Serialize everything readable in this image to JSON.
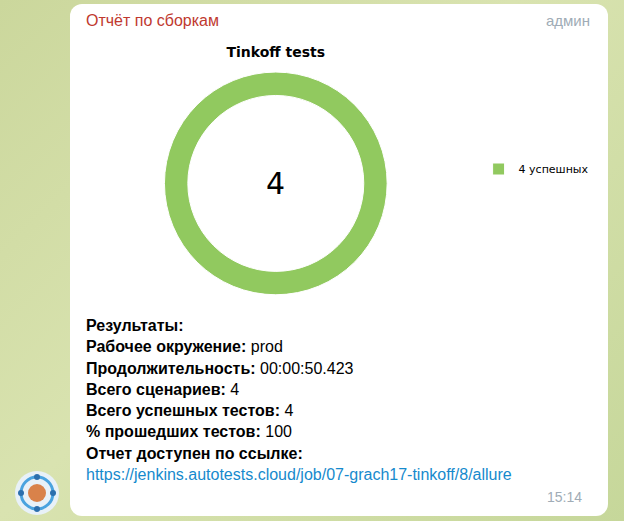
{
  "message": {
    "sender": "Отчёт по сборкам",
    "author": "админ",
    "time": "15:14",
    "heading": "Результаты:",
    "fields": [
      {
        "label": "Рабочее окружение:",
        "value": "prod"
      },
      {
        "label": "Продолжительность:",
        "value": "00:00:50.423"
      },
      {
        "label": "Всего сценариев:",
        "value": 4
      },
      {
        "label": "Всего успешных тестов:",
        "value": 4
      },
      {
        "label": "% прошедших тестов:",
        "value": 100
      }
    ],
    "link_label": "Отчет доступен по ссылке:",
    "link": "https://jenkins.autotests.cloud/job/07-grach17-tinkoff/8/allure"
  },
  "chart_data": {
    "type": "pie",
    "title": "Tinkoff tests",
    "categories": [
      "4 успешных"
    ],
    "values": [
      4
    ],
    "colors": [
      "#91c95f"
    ],
    "annotations": [
      "4"
    ],
    "legend": "right"
  }
}
